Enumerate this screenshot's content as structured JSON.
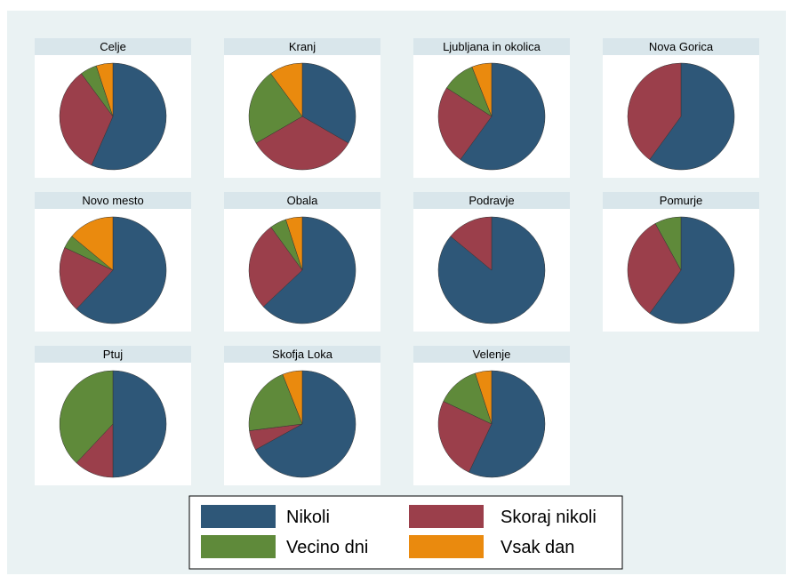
{
  "chart_data": {
    "type": "pie",
    "legend_position": "bottom",
    "series": [
      {
        "name": "Nikoli",
        "color": "#2e5778"
      },
      {
        "name": "Skoraj nikoli",
        "color": "#9b3f4b"
      },
      {
        "name": "Vecino dni",
        "color": "#5f8a3a"
      },
      {
        "name": "Vsak dan",
        "color": "#ea8a0e"
      }
    ],
    "panels": [
      {
        "title": "Celje",
        "values": [
          56,
          33,
          5,
          5
        ]
      },
      {
        "title": "Kranj",
        "values": [
          33,
          33,
          23,
          10
        ]
      },
      {
        "title": "Ljubljana in okolica",
        "values": [
          60,
          24,
          10,
          6
        ]
      },
      {
        "title": "Nova Gorica",
        "values": [
          60,
          40,
          0,
          0
        ]
      },
      {
        "title": "Novo mesto",
        "values": [
          62,
          20,
          4,
          14
        ]
      },
      {
        "title": "Obala",
        "values": [
          63,
          27,
          5,
          5
        ]
      },
      {
        "title": "Podravje",
        "values": [
          86,
          14,
          0,
          0
        ]
      },
      {
        "title": "Pomurje",
        "values": [
          60,
          32,
          8,
          0
        ]
      },
      {
        "title": "Ptuj",
        "values": [
          50,
          12,
          38,
          0
        ]
      },
      {
        "title": "Skofja Loka",
        "values": [
          67,
          6,
          21,
          6
        ]
      },
      {
        "title": "Velenje",
        "values": [
          57,
          25,
          13,
          5
        ]
      }
    ]
  }
}
